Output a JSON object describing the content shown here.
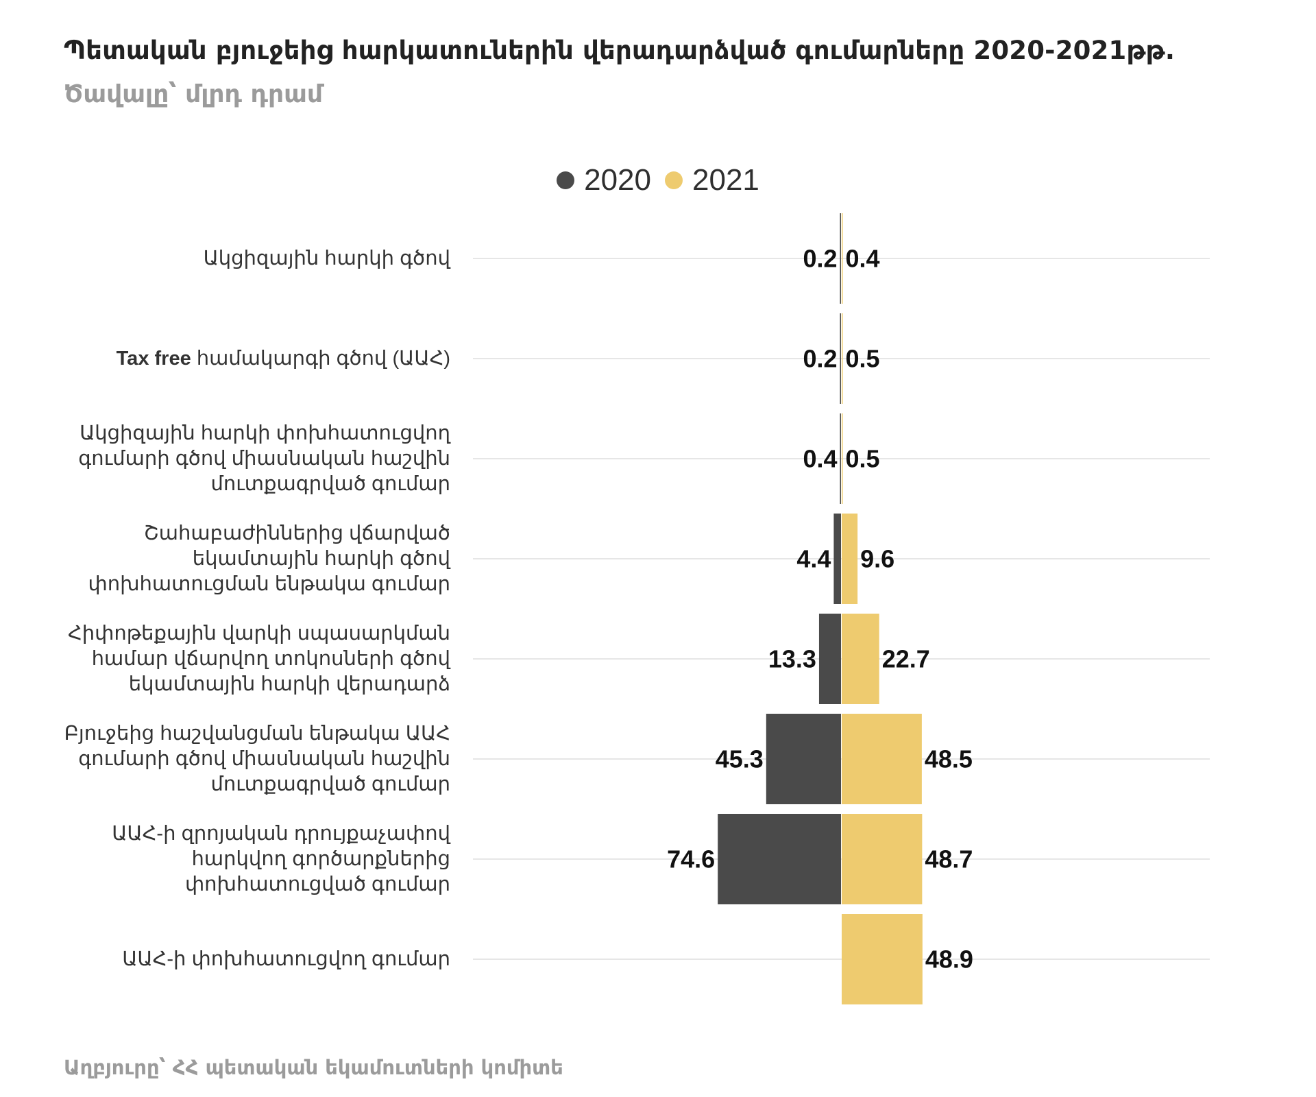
{
  "header": {
    "title": "Պետական բյուջեից հարկատուներին վերադարձված գումարները 2020-2021թթ.",
    "subtitle": "Ծավալը՝ մլրդ դրամ"
  },
  "footer": {
    "source": "Աղբյուրը՝ ՀՀ պետական եկամուտների կոմիտե"
  },
  "colors": {
    "series_2020": "#4a4a4a",
    "series_2021": "#eecb6f",
    "gridline": "#dddddd",
    "axis_text": "#333333",
    "value_text": "#111111"
  },
  "chart_data": {
    "type": "bar",
    "orientation": "horizontal",
    "layout": "diverging-butterfly",
    "legend_position": "top-center",
    "grid": true,
    "categories": [
      {
        "lines": [
          "Ակցիզային հարկի գծով"
        ]
      },
      {
        "lines": [
          "Tax free համակարգի գծով (ԱԱՀ)"
        ],
        "bold_prefix": "Tax free"
      },
      {
        "lines": [
          "Ակցիզային հարկի փոխհատուցվող",
          "գումարի գծով միասնական հաշվին",
          "մուտքագրված գումար"
        ]
      },
      {
        "lines": [
          "Շահաբաժիններից վճարված",
          "եկամտային հարկի գծով",
          "փոխհատուցման ենթակա գումար"
        ]
      },
      {
        "lines": [
          "Հիփոթեքային վարկի սպասարկման",
          "համար վճարվող տոկոսների գծով",
          "եկամտային հարկի վերադարձ"
        ]
      },
      {
        "lines": [
          "Բյուջեից հաշվանցման ենթակա ԱԱՀ",
          "գումարի գծով միասնական հաշվին",
          "մուտքագրված գումար"
        ]
      },
      {
        "lines": [
          "ԱԱՀ-ի զրոյական դրույքաչափով",
          "հարկվող գործարքներից",
          "փոխհատուցված գումար"
        ]
      },
      {
        "lines": [
          "ԱԱՀ-ի փոխհատուցվող գումար"
        ]
      }
    ],
    "series": [
      {
        "name": "2020",
        "side": "left",
        "values": [
          0.2,
          0.2,
          0.4,
          4.4,
          13.3,
          45.3,
          74.6,
          null
        ],
        "labels": [
          "0.2",
          "0.2",
          "0.4",
          "4.4",
          "13.3",
          "45.3",
          "74.6",
          ""
        ]
      },
      {
        "name": "2021",
        "side": "right",
        "values": [
          0.4,
          0.5,
          0.5,
          9.6,
          22.7,
          48.5,
          48.7,
          48.9
        ],
        "labels": [
          "0.4",
          "0.5",
          "0.5",
          "9.6",
          "22.7",
          "48.5",
          "48.7",
          "48.9"
        ]
      }
    ]
  }
}
